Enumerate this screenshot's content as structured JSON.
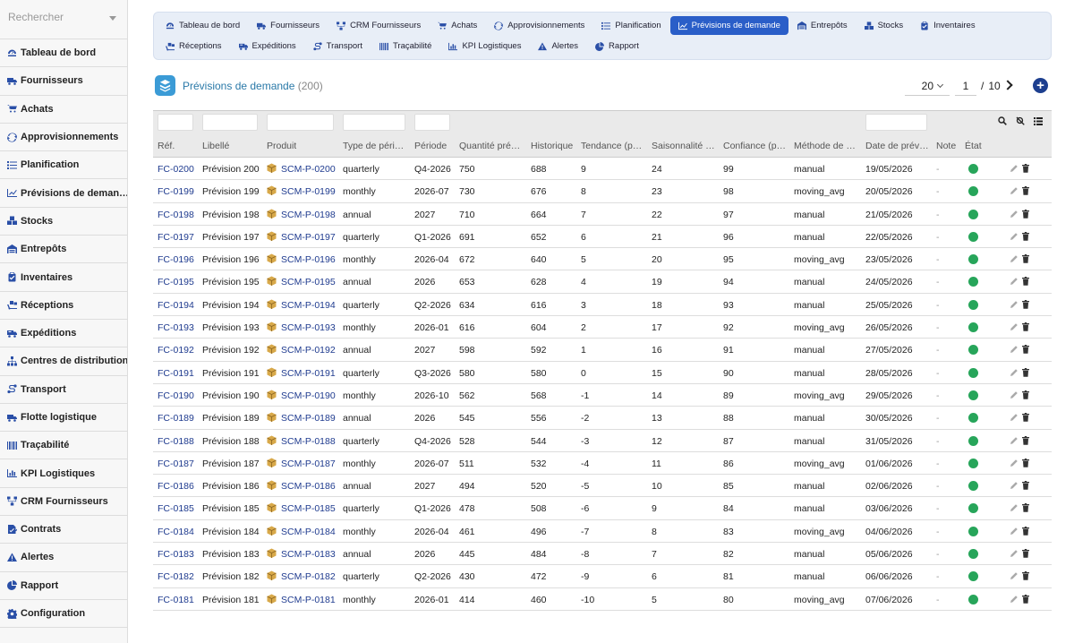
{
  "sidebar": {
    "search_placeholder": "Rechercher",
    "items": [
      {
        "label": "Tableau de bord",
        "icon": "gauge-icon"
      },
      {
        "label": "Fournisseurs",
        "icon": "truck-icon"
      },
      {
        "label": "Achats",
        "icon": "cart-icon"
      },
      {
        "label": "Approvisionnements",
        "icon": "sync-icon"
      },
      {
        "label": "Planification",
        "icon": "list-icon"
      },
      {
        "label": "Prévisions de deman…",
        "icon": "chart-line-icon"
      },
      {
        "label": "Stocks",
        "icon": "boxes-icon"
      },
      {
        "label": "Entrepôts",
        "icon": "warehouse-icon"
      },
      {
        "label": "Inventaires",
        "icon": "clipboard-icon"
      },
      {
        "label": "Réceptions",
        "icon": "dolly-icon"
      },
      {
        "label": "Expéditions",
        "icon": "shipping-icon"
      },
      {
        "label": "Centres de distribution",
        "icon": "sitemap-icon"
      },
      {
        "label": "Transport",
        "icon": "route-icon"
      },
      {
        "label": "Flotte logistique",
        "icon": "truck-icon"
      },
      {
        "label": "Traçabilité",
        "icon": "barcode-icon"
      },
      {
        "label": "KPI Logistiques",
        "icon": "chart-bar-icon"
      },
      {
        "label": "CRM Fournisseurs",
        "icon": "network-icon"
      },
      {
        "label": "Contrats",
        "icon": "contract-icon"
      },
      {
        "label": "Alertes",
        "icon": "warning-icon"
      },
      {
        "label": "Rapport",
        "icon": "chart-pie-icon"
      },
      {
        "label": "Configuration",
        "icon": "gear-icon"
      }
    ]
  },
  "topnav": {
    "items": [
      {
        "label": "Tableau de bord",
        "icon": "gauge-icon"
      },
      {
        "label": "Fournisseurs",
        "icon": "truck-icon"
      },
      {
        "label": "CRM Fournisseurs",
        "icon": "network-icon"
      },
      {
        "label": "Achats",
        "icon": "cart-icon"
      },
      {
        "label": "Approvisionnements",
        "icon": "sync-icon"
      },
      {
        "label": "Planification",
        "icon": "list-icon"
      },
      {
        "label": "Prévisions de demande",
        "icon": "chart-line-icon",
        "active": true
      },
      {
        "label": "Entrepôts",
        "icon": "warehouse-icon"
      },
      {
        "label": "Stocks",
        "icon": "boxes-icon"
      },
      {
        "label": "Inventaires",
        "icon": "clipboard-icon"
      },
      {
        "label": "Réceptions",
        "icon": "dolly-icon"
      },
      {
        "label": "Expéditions",
        "icon": "shipping-icon"
      },
      {
        "label": "Transport",
        "icon": "route-icon"
      },
      {
        "label": "Traçabilité",
        "icon": "barcode-icon"
      },
      {
        "label": "KPI Logistiques",
        "icon": "chart-bar-icon"
      },
      {
        "label": "Alertes",
        "icon": "warning-icon"
      },
      {
        "label": "Rapport",
        "icon": "chart-pie-icon"
      }
    ]
  },
  "page": {
    "title": "Prévisions de demande",
    "count": "(200)",
    "page_size": "20",
    "current_page": "1",
    "page_sep": "/",
    "total_pages": "10",
    "add_symbol": "+"
  },
  "colors": {
    "accent": "#2a5ec8",
    "link": "#1f3b8f",
    "status_ok": "#27a55a",
    "title": "#2a79a8"
  },
  "table": {
    "columns": [
      "Réf.",
      "Libellé",
      "Produit",
      "Type de péri…",
      "Période",
      "Quantité pré…",
      "Historique",
      "Tendance (p…",
      "Saisonnalité …",
      "Confiance (p…",
      "Méthode de …",
      "Date de prév…",
      "Note",
      "État"
    ],
    "rows": [
      {
        "ref": "FC-0200",
        "label": "Prévision 200",
        "product": "SCM-P-0200",
        "type": "quarterly",
        "period": "Q4-2026",
        "qty": "750",
        "hist": "688",
        "trend": "9",
        "season": "24",
        "conf": "99",
        "method": "manual",
        "date": "19/05/2026",
        "note": "-"
      },
      {
        "ref": "FC-0199",
        "label": "Prévision 199",
        "product": "SCM-P-0199",
        "type": "monthly",
        "period": "2026-07",
        "qty": "730",
        "hist": "676",
        "trend": "8",
        "season": "23",
        "conf": "98",
        "method": "moving_avg",
        "date": "20/05/2026",
        "note": "-"
      },
      {
        "ref": "FC-0198",
        "label": "Prévision 198",
        "product": "SCM-P-0198",
        "type": "annual",
        "period": "2027",
        "qty": "710",
        "hist": "664",
        "trend": "7",
        "season": "22",
        "conf": "97",
        "method": "manual",
        "date": "21/05/2026",
        "note": "-"
      },
      {
        "ref": "FC-0197",
        "label": "Prévision 197",
        "product": "SCM-P-0197",
        "type": "quarterly",
        "period": "Q1-2026",
        "qty": "691",
        "hist": "652",
        "trend": "6",
        "season": "21",
        "conf": "96",
        "method": "manual",
        "date": "22/05/2026",
        "note": "-"
      },
      {
        "ref": "FC-0196",
        "label": "Prévision 196",
        "product": "SCM-P-0196",
        "type": "monthly",
        "period": "2026-04",
        "qty": "672",
        "hist": "640",
        "trend": "5",
        "season": "20",
        "conf": "95",
        "method": "moving_avg",
        "date": "23/05/2026",
        "note": "-"
      },
      {
        "ref": "FC-0195",
        "label": "Prévision 195",
        "product": "SCM-P-0195",
        "type": "annual",
        "period": "2026",
        "qty": "653",
        "hist": "628",
        "trend": "4",
        "season": "19",
        "conf": "94",
        "method": "manual",
        "date": "24/05/2026",
        "note": "-"
      },
      {
        "ref": "FC-0194",
        "label": "Prévision 194",
        "product": "SCM-P-0194",
        "type": "quarterly",
        "period": "Q2-2026",
        "qty": "634",
        "hist": "616",
        "trend": "3",
        "season": "18",
        "conf": "93",
        "method": "manual",
        "date": "25/05/2026",
        "note": "-"
      },
      {
        "ref": "FC-0193",
        "label": "Prévision 193",
        "product": "SCM-P-0193",
        "type": "monthly",
        "period": "2026-01",
        "qty": "616",
        "hist": "604",
        "trend": "2",
        "season": "17",
        "conf": "92",
        "method": "moving_avg",
        "date": "26/05/2026",
        "note": "-"
      },
      {
        "ref": "FC-0192",
        "label": "Prévision 192",
        "product": "SCM-P-0192",
        "type": "annual",
        "period": "2027",
        "qty": "598",
        "hist": "592",
        "trend": "1",
        "season": "16",
        "conf": "91",
        "method": "manual",
        "date": "27/05/2026",
        "note": "-"
      },
      {
        "ref": "FC-0191",
        "label": "Prévision 191",
        "product": "SCM-P-0191",
        "type": "quarterly",
        "period": "Q3-2026",
        "qty": "580",
        "hist": "580",
        "trend": "0",
        "season": "15",
        "conf": "90",
        "method": "manual",
        "date": "28/05/2026",
        "note": "-"
      },
      {
        "ref": "FC-0190",
        "label": "Prévision 190",
        "product": "SCM-P-0190",
        "type": "monthly",
        "period": "2026-10",
        "qty": "562",
        "hist": "568",
        "trend": "-1",
        "season": "14",
        "conf": "89",
        "method": "moving_avg",
        "date": "29/05/2026",
        "note": "-"
      },
      {
        "ref": "FC-0189",
        "label": "Prévision 189",
        "product": "SCM-P-0189",
        "type": "annual",
        "period": "2026",
        "qty": "545",
        "hist": "556",
        "trend": "-2",
        "season": "13",
        "conf": "88",
        "method": "manual",
        "date": "30/05/2026",
        "note": "-"
      },
      {
        "ref": "FC-0188",
        "label": "Prévision 188",
        "product": "SCM-P-0188",
        "type": "quarterly",
        "period": "Q4-2026",
        "qty": "528",
        "hist": "544",
        "trend": "-3",
        "season": "12",
        "conf": "87",
        "method": "manual",
        "date": "31/05/2026",
        "note": "-"
      },
      {
        "ref": "FC-0187",
        "label": "Prévision 187",
        "product": "SCM-P-0187",
        "type": "monthly",
        "period": "2026-07",
        "qty": "511",
        "hist": "532",
        "trend": "-4",
        "season": "11",
        "conf": "86",
        "method": "moving_avg",
        "date": "01/06/2026",
        "note": "-"
      },
      {
        "ref": "FC-0186",
        "label": "Prévision 186",
        "product": "SCM-P-0186",
        "type": "annual",
        "period": "2027",
        "qty": "494",
        "hist": "520",
        "trend": "-5",
        "season": "10",
        "conf": "85",
        "method": "manual",
        "date": "02/06/2026",
        "note": "-"
      },
      {
        "ref": "FC-0185",
        "label": "Prévision 185",
        "product": "SCM-P-0185",
        "type": "quarterly",
        "period": "Q1-2026",
        "qty": "478",
        "hist": "508",
        "trend": "-6",
        "season": "9",
        "conf": "84",
        "method": "manual",
        "date": "03/06/2026",
        "note": "-"
      },
      {
        "ref": "FC-0184",
        "label": "Prévision 184",
        "product": "SCM-P-0184",
        "type": "monthly",
        "period": "2026-04",
        "qty": "461",
        "hist": "496",
        "trend": "-7",
        "season": "8",
        "conf": "83",
        "method": "moving_avg",
        "date": "04/06/2026",
        "note": "-"
      },
      {
        "ref": "FC-0183",
        "label": "Prévision 183",
        "product": "SCM-P-0183",
        "type": "annual",
        "period": "2026",
        "qty": "445",
        "hist": "484",
        "trend": "-8",
        "season": "7",
        "conf": "82",
        "method": "manual",
        "date": "05/06/2026",
        "note": "-"
      },
      {
        "ref": "FC-0182",
        "label": "Prévision 182",
        "product": "SCM-P-0182",
        "type": "quarterly",
        "period": "Q2-2026",
        "qty": "430",
        "hist": "472",
        "trend": "-9",
        "season": "6",
        "conf": "81",
        "method": "manual",
        "date": "06/06/2026",
        "note": "-"
      },
      {
        "ref": "FC-0181",
        "label": "Prévision 181",
        "product": "SCM-P-0181",
        "type": "monthly",
        "period": "2026-01",
        "qty": "414",
        "hist": "460",
        "trend": "-10",
        "season": "5",
        "conf": "80",
        "method": "moving_avg",
        "date": "07/06/2026",
        "note": "-"
      }
    ]
  }
}
